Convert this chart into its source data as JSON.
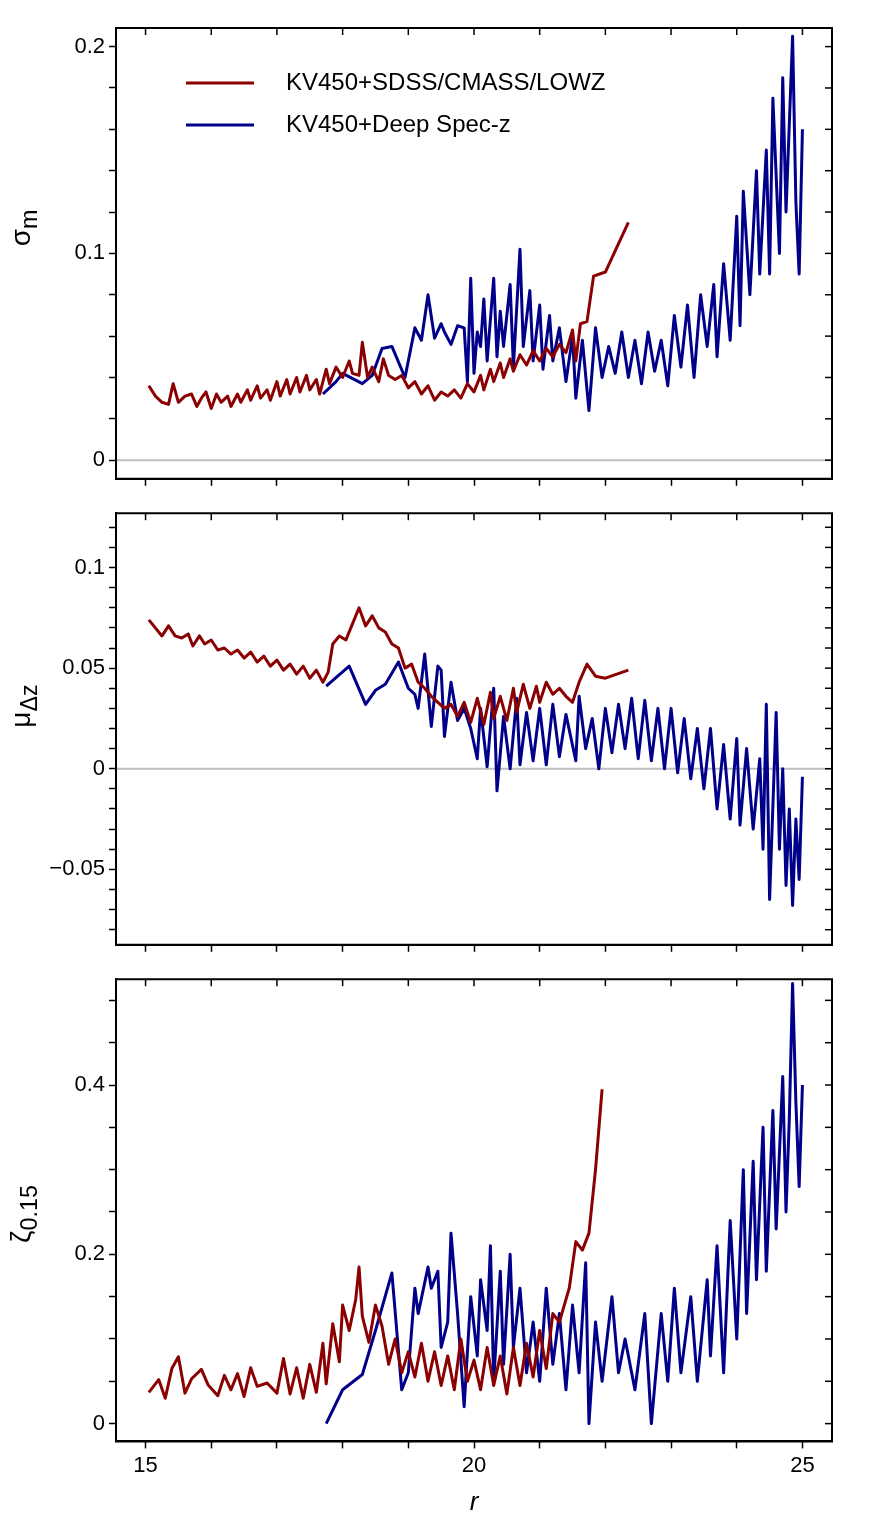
{
  "chart_data": [
    {
      "type": "line",
      "ylabel": "σ$_{m}$",
      "legend": "top left",
      "tick_labels": "y",
      "grid": false,
      "marker": "none",
      "line_style": "solid",
      "xlim": [
        14.55,
        25.45
      ],
      "xticks": [
        15,
        {
          "value": 16,
          "label": null
        },
        {
          "value": 17,
          "label": null
        },
        {
          "value": 18,
          "label": null
        },
        {
          "value": 19,
          "label": null
        },
        20,
        {
          "value": 21,
          "label": null
        },
        {
          "value": 22,
          "label": null
        },
        {
          "value": 23,
          "label": null
        },
        {
          "value": 24,
          "label": null
        },
        25
      ],
      "ylim": [
        -0.009,
        0.209
      ],
      "yticks": [
        0,
        {
          "value": 0.02,
          "label": null
        },
        {
          "value": 0.04,
          "label": null
        },
        {
          "value": 0.06,
          "label": null
        },
        {
          "value": 0.08,
          "label": null
        },
        0.1,
        {
          "value": 0.12,
          "label": null
        },
        {
          "value": 0.14,
          "label": null
        },
        {
          "value": 0.16,
          "label": null
        },
        {
          "value": 0.18,
          "label": null
        },
        0.2
      ],
      "ref_lines": [
        {
          "axis": "y",
          "value": 0,
          "color": "#bebebe"
        }
      ],
      "series": [
        {
          "name": "KV450+SDSS/CMASS/LOWZ",
          "color": "#8b0000",
          "x": [
            15.05,
            15.15,
            15.25,
            15.35,
            15.42,
            15.5,
            15.6,
            15.7,
            15.78,
            15.85,
            15.92,
            16.0,
            16.08,
            16.15,
            16.25,
            16.3,
            16.4,
            16.45,
            16.55,
            16.6,
            16.7,
            16.75,
            16.85,
            16.9,
            17.0,
            17.05,
            17.15,
            17.2,
            17.3,
            17.35,
            17.45,
            17.5,
            17.6,
            17.65,
            17.75,
            17.8,
            17.9,
            18.0,
            18.1,
            18.15,
            18.25,
            18.3,
            18.38,
            18.45,
            18.55,
            18.62,
            18.7,
            18.8,
            18.9,
            19.0,
            19.1,
            19.2,
            19.3,
            19.4,
            19.5,
            19.6,
            19.7,
            19.8,
            19.9,
            20.0,
            20.1,
            20.15,
            20.25,
            20.3,
            20.4,
            20.45,
            20.55,
            20.6,
            20.7,
            20.8,
            20.9,
            21.0,
            21.1,
            21.2,
            21.3,
            21.4,
            21.5,
            21.55,
            21.62,
            21.72,
            21.82,
            22.0,
            22.35
          ],
          "values": [
            0.036,
            0.031,
            0.028,
            0.027,
            0.037,
            0.028,
            0.031,
            0.032,
            0.026,
            0.03,
            0.033,
            0.025,
            0.032,
            0.028,
            0.031,
            0.026,
            0.032,
            0.028,
            0.034,
            0.029,
            0.036,
            0.03,
            0.034,
            0.029,
            0.038,
            0.031,
            0.039,
            0.032,
            0.04,
            0.033,
            0.041,
            0.034,
            0.039,
            0.032,
            0.044,
            0.037,
            0.045,
            0.04,
            0.048,
            0.042,
            0.041,
            0.057,
            0.04,
            0.045,
            0.038,
            0.049,
            0.041,
            0.039,
            0.041,
            0.035,
            0.038,
            0.032,
            0.036,
            0.029,
            0.033,
            0.031,
            0.034,
            0.03,
            0.037,
            0.033,
            0.041,
            0.034,
            0.044,
            0.038,
            0.047,
            0.04,
            0.049,
            0.043,
            0.051,
            0.046,
            0.053,
            0.048,
            0.054,
            0.05,
            0.056,
            0.052,
            0.063,
            0.048,
            0.066,
            0.067,
            0.089,
            0.091,
            0.115
          ]
        },
        {
          "name": "KV450+Deep Spec-z",
          "color": "#00008b",
          "x": [
            17.7,
            17.9,
            18.0,
            18.3,
            18.45,
            18.6,
            18.75,
            18.95,
            19.1,
            19.2,
            19.3,
            19.4,
            19.5,
            19.55,
            19.65,
            19.75,
            19.85,
            19.9,
            19.95,
            20.0,
            20.05,
            20.1,
            20.15,
            20.2,
            20.3,
            20.35,
            20.4,
            20.45,
            20.55,
            20.6,
            20.7,
            20.75,
            20.85,
            20.9,
            21.0,
            21.05,
            21.15,
            21.2,
            21.3,
            21.4,
            21.5,
            21.55,
            21.65,
            21.75,
            21.85,
            21.95,
            22.05,
            22.15,
            22.25,
            22.35,
            22.45,
            22.55,
            22.65,
            22.75,
            22.85,
            22.95,
            23.05,
            23.15,
            23.25,
            23.35,
            23.45,
            23.55,
            23.65,
            23.7,
            23.8,
            23.9,
            24.0,
            24.05,
            24.1,
            24.2,
            24.3,
            24.35,
            24.45,
            24.5,
            24.55,
            24.65,
            24.7,
            24.75,
            24.85,
            24.9,
            24.95,
            25.0
          ],
          "values": [
            0.032,
            0.038,
            0.042,
            0.037,
            0.041,
            0.054,
            0.055,
            0.04,
            0.064,
            0.058,
            0.08,
            0.059,
            0.066,
            0.062,
            0.056,
            0.065,
            0.064,
            0.038,
            0.088,
            0.042,
            0.062,
            0.055,
            0.078,
            0.048,
            0.088,
            0.05,
            0.072,
            0.055,
            0.085,
            0.045,
            0.102,
            0.055,
            0.082,
            0.048,
            0.075,
            0.044,
            0.07,
            0.048,
            0.064,
            0.038,
            0.06,
            0.03,
            0.058,
            0.024,
            0.064,
            0.04,
            0.055,
            0.042,
            0.062,
            0.04,
            0.058,
            0.037,
            0.062,
            0.043,
            0.058,
            0.036,
            0.07,
            0.045,
            0.075,
            0.04,
            0.08,
            0.055,
            0.085,
            0.05,
            0.095,
            0.058,
            0.118,
            0.065,
            0.13,
            0.08,
            0.14,
            0.09,
            0.15,
            0.09,
            0.175,
            0.1,
            0.185,
            0.12,
            0.205,
            0.125,
            0.09,
            0.16
          ]
        }
      ]
    },
    {
      "type": "line",
      "ylabel": "μ$_{Δz}$",
      "tick_labels": "y",
      "grid": false,
      "marker": "none",
      "line_style": "solid",
      "xlim": [
        14.55,
        25.45
      ],
      "xticks": [
        15,
        {
          "value": 16,
          "label": null
        },
        {
          "value": 17,
          "label": null
        },
        {
          "value": 18,
          "label": null
        },
        {
          "value": 19,
          "label": null
        },
        20,
        {
          "value": 21,
          "label": null
        },
        {
          "value": 22,
          "label": null
        },
        {
          "value": 23,
          "label": null
        },
        {
          "value": 24,
          "label": null
        },
        25
      ],
      "ylim": [
        -0.0875,
        0.127
      ],
      "yticks": [
        {
          "value": -0.08,
          "label": null
        },
        {
          "value": -0.07,
          "label": null
        },
        {
          "value": -0.06,
          "label": null
        },
        {
          "value": -0.05,
          "label": "−0.05"
        },
        {
          "value": -0.04,
          "label": null
        },
        {
          "value": -0.03,
          "label": null
        },
        {
          "value": -0.02,
          "label": null
        },
        {
          "value": -0.01,
          "label": null
        },
        0,
        {
          "value": 0.01,
          "label": null
        },
        {
          "value": 0.02,
          "label": null
        },
        {
          "value": 0.03,
          "label": null
        },
        {
          "value": 0.04,
          "label": null
        },
        0.05,
        {
          "value": 0.06,
          "label": null
        },
        {
          "value": 0.07,
          "label": null
        },
        {
          "value": 0.08,
          "label": null
        },
        {
          "value": 0.09,
          "label": null
        },
        0.1,
        {
          "value": 0.11,
          "label": null
        },
        {
          "value": 0.12,
          "label": null
        }
      ],
      "ref_lines": [
        {
          "axis": "y",
          "value": 0,
          "color": "#bebebe"
        }
      ],
      "series": [
        {
          "color": "#8b0000",
          "x": [
            15.05,
            15.25,
            15.35,
            15.45,
            15.55,
            15.65,
            15.72,
            15.82,
            15.9,
            16.0,
            16.1,
            16.2,
            16.3,
            16.4,
            16.5,
            16.6,
            16.7,
            16.8,
            16.9,
            17.0,
            17.1,
            17.2,
            17.3,
            17.4,
            17.5,
            17.6,
            17.7,
            17.78,
            17.85,
            17.95,
            18.05,
            18.15,
            18.25,
            18.35,
            18.45,
            18.55,
            18.65,
            18.75,
            18.85,
            18.95,
            19.05,
            19.15,
            19.25,
            19.35,
            19.45,
            19.55,
            19.65,
            19.75,
            19.85,
            19.95,
            20.05,
            20.15,
            20.25,
            20.3,
            20.4,
            20.5,
            20.6,
            20.65,
            20.75,
            20.85,
            20.95,
            21.0,
            21.1,
            21.2,
            21.3,
            21.4,
            21.5,
            21.6,
            21.72,
            21.85,
            22.0,
            22.35
          ],
          "values": [
            0.074,
            0.066,
            0.071,
            0.066,
            0.065,
            0.067,
            0.061,
            0.066,
            0.062,
            0.064,
            0.059,
            0.06,
            0.057,
            0.059,
            0.055,
            0.058,
            0.053,
            0.056,
            0.051,
            0.054,
            0.049,
            0.052,
            0.047,
            0.051,
            0.045,
            0.049,
            0.043,
            0.048,
            0.062,
            0.066,
            0.064,
            0.072,
            0.08,
            0.071,
            0.076,
            0.07,
            0.068,
            0.062,
            0.06,
            0.05,
            0.052,
            0.043,
            0.04,
            0.036,
            0.033,
            0.03,
            0.032,
            0.026,
            0.033,
            0.023,
            0.035,
            0.022,
            0.038,
            0.025,
            0.036,
            0.024,
            0.04,
            0.028,
            0.042,
            0.03,
            0.041,
            0.033,
            0.043,
            0.037,
            0.04,
            0.036,
            0.033,
            0.043,
            0.052,
            0.046,
            0.045,
            0.049
          ]
        },
        {
          "color": "#00008b",
          "x": [
            17.75,
            18.1,
            18.35,
            18.5,
            18.65,
            18.85,
            19.0,
            19.1,
            19.15,
            19.25,
            19.35,
            19.45,
            19.5,
            19.55,
            19.65,
            19.75,
            19.85,
            19.95,
            20.05,
            20.1,
            20.2,
            20.3,
            20.35,
            20.45,
            20.55,
            20.65,
            20.7,
            20.8,
            20.9,
            21.0,
            21.1,
            21.2,
            21.3,
            21.4,
            21.55,
            21.6,
            21.7,
            21.8,
            21.9,
            22.0,
            22.1,
            22.2,
            22.3,
            22.4,
            22.5,
            22.6,
            22.7,
            22.8,
            22.9,
            23.0,
            23.1,
            23.2,
            23.3,
            23.4,
            23.5,
            23.6,
            23.7,
            23.8,
            23.9,
            24.0,
            24.05,
            24.15,
            24.25,
            24.35,
            24.4,
            24.45,
            24.5,
            24.6,
            24.65,
            24.7,
            24.75,
            24.8,
            24.85,
            24.9,
            24.95,
            25.0
          ],
          "values": [
            0.041,
            0.051,
            0.032,
            0.039,
            0.042,
            0.053,
            0.04,
            0.037,
            0.03,
            0.057,
            0.021,
            0.051,
            0.049,
            0.016,
            0.043,
            0.024,
            0.03,
            0.02,
            0.005,
            0.03,
            0.001,
            0.04,
            -0.011,
            0.026,
            0.0,
            0.035,
            0.002,
            0.028,
            0.004,
            0.03,
            0.002,
            0.032,
            0.006,
            0.027,
            0.004,
            0.036,
            0.01,
            0.025,
            0.0,
            0.03,
            0.008,
            0.032,
            0.01,
            0.035,
            0.005,
            0.034,
            0.004,
            0.03,
            0.0,
            0.03,
            -0.002,
            0.025,
            -0.005,
            0.02,
            -0.01,
            0.02,
            -0.02,
            0.012,
            -0.025,
            0.015,
            -0.028,
            0.01,
            -0.03,
            0.005,
            -0.04,
            0.032,
            -0.065,
            0.028,
            -0.04,
            0.0,
            -0.058,
            -0.02,
            -0.068,
            -0.025,
            -0.055,
            -0.004
          ]
        }
      ]
    },
    {
      "type": "line",
      "ylabel": "ζ$_{0.15}$",
      "xlabel": "r",
      "grid": false,
      "marker": "none",
      "line_style": "solid",
      "xlim": [
        14.55,
        25.45
      ],
      "xticks": [
        15,
        {
          "value": 16,
          "label": null
        },
        {
          "value": 17,
          "label": null
        },
        {
          "value": 18,
          "label": null
        },
        {
          "value": 19,
          "label": null
        },
        20,
        {
          "value": 21,
          "label": null
        },
        {
          "value": 22,
          "label": null
        },
        {
          "value": 23,
          "label": null
        },
        {
          "value": 24,
          "label": null
        },
        25
      ],
      "ylim": [
        -0.021,
        0.525
      ],
      "yticks": [
        0,
        {
          "value": 0.05,
          "label": null
        },
        {
          "value": 0.1,
          "label": null
        },
        {
          "value": 0.15,
          "label": null
        },
        0.2,
        {
          "value": 0.25,
          "label": null
        },
        {
          "value": 0.3,
          "label": null
        },
        {
          "value": 0.35,
          "label": null
        },
        0.4,
        {
          "value": 0.45,
          "label": null
        },
        {
          "value": 0.5,
          "label": null
        }
      ],
      "series": [
        {
          "color": "#8b0000",
          "x": [
            15.05,
            15.2,
            15.3,
            15.4,
            15.5,
            15.6,
            15.7,
            15.85,
            15.95,
            16.1,
            16.2,
            16.3,
            16.4,
            16.5,
            16.6,
            16.7,
            16.85,
            17.0,
            17.1,
            17.2,
            17.3,
            17.4,
            17.5,
            17.6,
            17.7,
            17.75,
            17.85,
            17.95,
            18.0,
            18.1,
            18.2,
            18.25,
            18.3,
            18.4,
            18.5,
            18.6,
            18.7,
            18.8,
            18.9,
            19.0,
            19.1,
            19.2,
            19.3,
            19.4,
            19.5,
            19.6,
            19.7,
            19.8,
            19.9,
            20.0,
            20.1,
            20.2,
            20.3,
            20.4,
            20.5,
            20.6,
            20.7,
            20.8,
            20.9,
            21.0,
            21.1,
            21.2,
            21.3,
            21.45,
            21.55,
            21.65,
            21.75,
            21.85,
            21.95
          ],
          "values": [
            0.037,
            0.052,
            0.03,
            0.065,
            0.079,
            0.036,
            0.053,
            0.064,
            0.046,
            0.033,
            0.057,
            0.04,
            0.059,
            0.032,
            0.066,
            0.044,
            0.048,
            0.036,
            0.077,
            0.035,
            0.066,
            0.03,
            0.07,
            0.037,
            0.095,
            0.047,
            0.118,
            0.073,
            0.14,
            0.11,
            0.147,
            0.185,
            0.127,
            0.096,
            0.14,
            0.115,
            0.07,
            0.1,
            0.06,
            0.085,
            0.055,
            0.095,
            0.05,
            0.085,
            0.045,
            0.08,
            0.04,
            0.1,
            0.05,
            0.075,
            0.04,
            0.09,
            0.045,
            0.08,
            0.035,
            0.09,
            0.045,
            0.095,
            0.055,
            0.11,
            0.065,
            0.13,
            0.12,
            0.16,
            0.215,
            0.205,
            0.225,
            0.3,
            0.395
          ]
        },
        {
          "color": "#00008b",
          "x": [
            17.75,
            18.0,
            18.3,
            18.5,
            18.75,
            18.9,
            19.0,
            19.1,
            19.15,
            19.3,
            19.35,
            19.45,
            19.5,
            19.6,
            19.65,
            19.75,
            19.85,
            19.95,
            20.05,
            20.1,
            20.2,
            20.25,
            20.3,
            20.4,
            20.45,
            20.55,
            20.6,
            20.7,
            20.8,
            20.9,
            21.0,
            21.1,
            21.2,
            21.3,
            21.4,
            21.5,
            21.6,
            21.7,
            21.75,
            21.85,
            21.95,
            22.1,
            22.2,
            22.3,
            22.45,
            22.6,
            22.7,
            22.85,
            22.95,
            23.05,
            23.15,
            23.3,
            23.4,
            23.55,
            23.6,
            23.7,
            23.8,
            23.9,
            24.0,
            24.1,
            24.15,
            24.25,
            24.3,
            24.4,
            24.45,
            24.55,
            24.6,
            24.7,
            24.75,
            24.8,
            24.85,
            24.9,
            24.95,
            25.0
          ],
          "values": [
            0.0,
            0.04,
            0.058,
            0.11,
            0.178,
            0.04,
            0.06,
            0.16,
            0.13,
            0.185,
            0.16,
            0.18,
            0.09,
            0.12,
            0.225,
            0.13,
            0.02,
            0.15,
            0.08,
            0.17,
            0.11,
            0.21,
            0.05,
            0.18,
            0.07,
            0.2,
            0.09,
            0.16,
            0.06,
            0.12,
            0.05,
            0.16,
            0.07,
            0.13,
            0.04,
            0.14,
            0.06,
            0.19,
            0.0,
            0.12,
            0.05,
            0.15,
            0.06,
            0.1,
            0.04,
            0.13,
            0.0,
            0.13,
            0.05,
            0.16,
            0.06,
            0.15,
            0.05,
            0.17,
            0.08,
            0.21,
            0.06,
            0.24,
            0.1,
            0.3,
            0.13,
            0.31,
            0.17,
            0.35,
            0.18,
            0.37,
            0.23,
            0.41,
            0.25,
            0.36,
            0.52,
            0.38,
            0.28,
            0.4
          ]
        }
      ]
    }
  ]
}
